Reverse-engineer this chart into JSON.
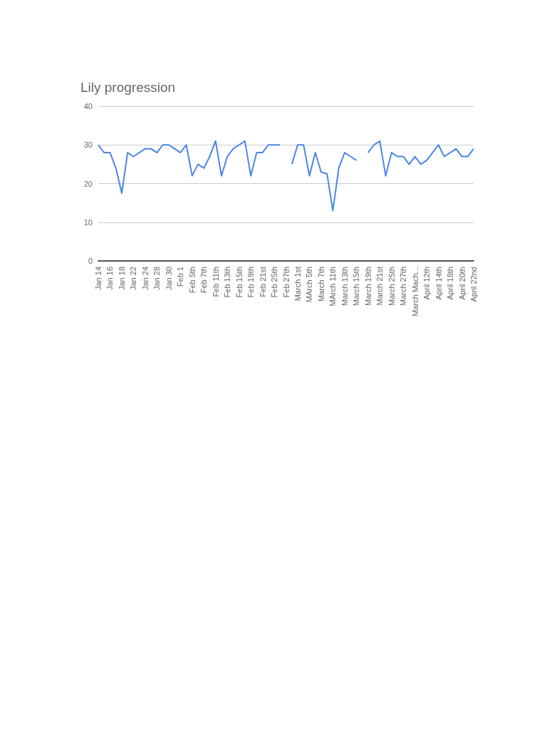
{
  "chart_data": {
    "type": "line",
    "title": "Lily progression",
    "categories": [
      "Jan 14",
      null,
      "Jan 16",
      null,
      "Jan 18",
      null,
      "Jan 22",
      null,
      "Jan 24",
      null,
      "Jan 28",
      null,
      "Jan 30",
      null,
      "Feb 1",
      null,
      "Feb 5th",
      null,
      "Feb 7th",
      null,
      "Feb 11th",
      null,
      "Feb 13th",
      null,
      "Feb 15th",
      null,
      "Feb 19th",
      null,
      "Feb 21st",
      null,
      "Feb 25th",
      null,
      "Feb 27th",
      null,
      "March 1st",
      null,
      "MArch 5th",
      null,
      "March 7th",
      null,
      "MArch 11th",
      null,
      "March 13th",
      null,
      "March 15th",
      null,
      "March 19th",
      null,
      "March 21st",
      null,
      "March 25th",
      null,
      "March 27th",
      null,
      "March Mach...",
      null,
      "April 12th",
      null,
      "April 14th",
      null,
      "April 18th",
      null,
      "April 20th",
      null,
      "April 22nd"
    ],
    "series": [
      {
        "color": "#4a86e8",
        "values": [
          30,
          28,
          28,
          24,
          17.5,
          28,
          27,
          28,
          29,
          29,
          28,
          30,
          30,
          29,
          28,
          30,
          22,
          25,
          24,
          27,
          31,
          22,
          27,
          29,
          30,
          31,
          22,
          28,
          28,
          30,
          30,
          30,
          null,
          25,
          30,
          30,
          22,
          28,
          23,
          22.5,
          13,
          24,
          28,
          27,
          26,
          null,
          28,
          30,
          31,
          22,
          28,
          27,
          27,
          25,
          27,
          25,
          26,
          28,
          30,
          27,
          28,
          29,
          27,
          27,
          29
        ]
      }
    ],
    "ylim": [
      0,
      40
    ],
    "yticks": [
      0,
      10,
      20,
      30,
      40
    ],
    "grid": "y",
    "marker": "none",
    "line_style": "solid"
  }
}
